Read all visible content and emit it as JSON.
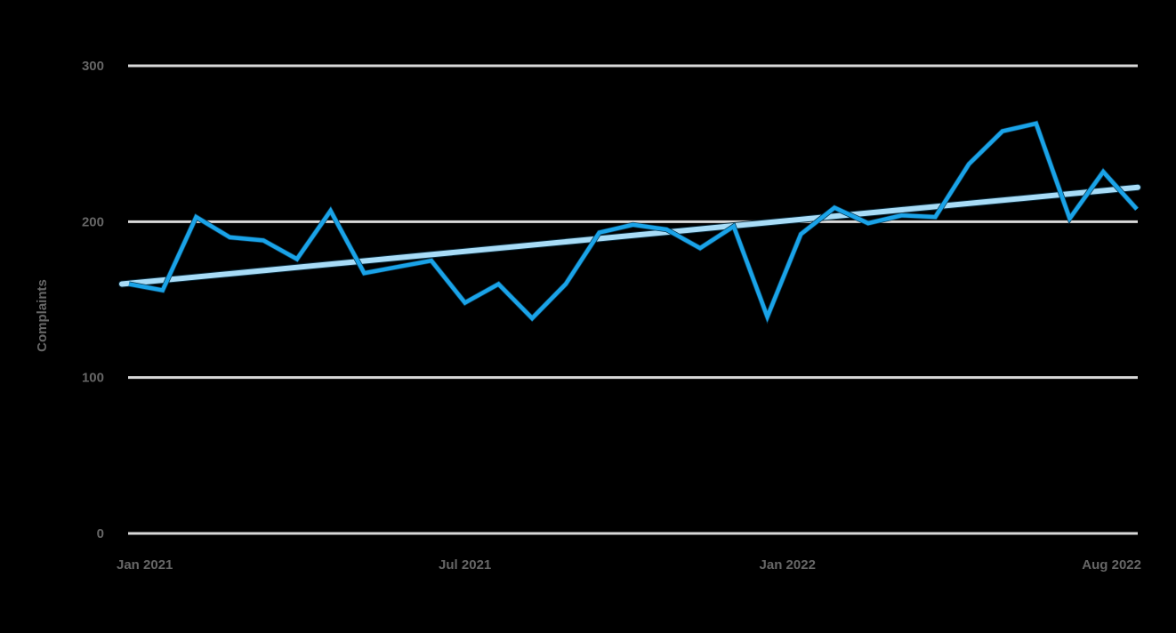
{
  "chart_data": {
    "type": "line",
    "title": "",
    "xlabel": "",
    "ylabel": "Complaints",
    "ylim": [
      0,
      300
    ],
    "yticks": [
      0,
      100,
      200,
      300
    ],
    "xtick_labels": [
      {
        "label": "Jan 2021",
        "index": 0
      },
      {
        "label": "Jul 2021",
        "index": 10
      },
      {
        "label": "Jan 2022",
        "index": 19.6
      },
      {
        "label": "Aug 2022",
        "index": 30
      }
    ],
    "grid": true,
    "legend": null,
    "series": [
      {
        "name": "Complaints",
        "color": "#1aa3e8",
        "values": [
          160,
          156,
          203,
          190,
          188,
          176,
          207,
          167,
          171,
          175,
          148,
          160,
          138,
          160,
          193,
          198,
          195,
          183,
          197,
          139,
          192,
          209,
          199,
          204,
          203,
          237,
          258,
          263,
          202,
          232,
          208
        ]
      },
      {
        "name": "Trend",
        "color": "#a8dcf7",
        "start": 160,
        "end": 222
      }
    ]
  },
  "axis": {
    "ylabel": "Complaints",
    "yticks": [
      "0",
      "100",
      "200",
      "300"
    ],
    "xticks": [
      "Jan 2021",
      "Jul 2021",
      "Jan 2022",
      "Aug 2022"
    ]
  },
  "colors": {
    "background": "#000000",
    "grid": "#d9d9d9",
    "label": "#666666",
    "series": "#1aa3e8",
    "trend": "#a8dcf7"
  }
}
